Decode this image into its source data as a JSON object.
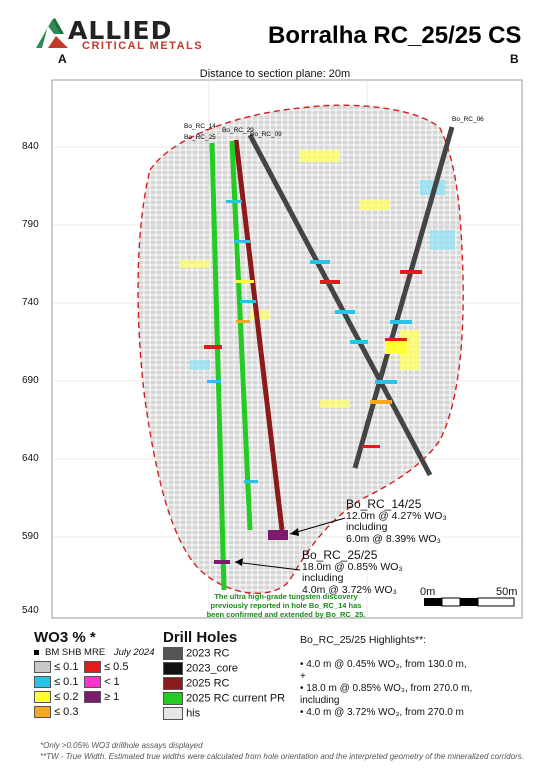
{
  "header": {
    "logo_main": "ALLIED",
    "logo_sub": "CRITICAL METALS",
    "title": "Borralha RC_25/25 CS",
    "corner_a": "A",
    "corner_b": "B",
    "distance_label": "Distance to section plane: 20m"
  },
  "axis": {
    "y_ticks": [
      "840",
      "790",
      "740",
      "690",
      "640",
      "590",
      "540"
    ]
  },
  "holes": [
    "Bo_RC_14",
    "Bo_RC_25",
    "Bo_RC_29",
    "Bo_RC_09",
    "Bo_RC_06"
  ],
  "callouts": {
    "rc14": {
      "name": "Bo_RC_14/25",
      "line1": "12.0m @ 4.27% WO₃",
      "line2": "including",
      "line3": "6.0m @ 8.39% WO₃"
    },
    "rc25": {
      "name": "Bo_RC_25/25",
      "line1": "18.0m @ 0.85% WO₃",
      "line2": "including",
      "line3": "4.0m @ 3.72% WO₃"
    }
  },
  "discovery_note": {
    "line1": "The ultra high-grade tungsten discovery",
    "line2": "previously reported in hole Bo_RC_14 has",
    "line3": "been confirmed and extended by Bo_RC_25."
  },
  "scale_bar": {
    "left": "0m",
    "right": "50m"
  },
  "legend_wo3": {
    "title": "WO3 % *",
    "model_label": "BM SHB MRE",
    "model_date": "July 2024",
    "items": [
      {
        "label": "≤ 0.1",
        "color": "#c8c8c8"
      },
      {
        "label": "≤ 0.5",
        "color": "#e41a1c"
      },
      {
        "label": "≤ 0.1",
        "color": "#27c4e8"
      },
      {
        "label": "< 1",
        "color": "#ff33cc"
      },
      {
        "label": "≤ 0.2",
        "color": "#ffff33"
      },
      {
        "label": "≥ 1",
        "color": "#7b1a6e"
      },
      {
        "label": "≤ 0.3",
        "color": "#f5a623"
      }
    ]
  },
  "legend_holes": {
    "title": "Drill Holes",
    "items": [
      {
        "label": "2023 RC",
        "color": "#555555"
      },
      {
        "label": "2023_core",
        "color": "#111111"
      },
      {
        "label": "2025 RC",
        "color": "#8b1a1a"
      },
      {
        "label": "2025 RC current PR",
        "color": "#22cc22"
      },
      {
        "label": "his",
        "color": "#e6e6e6"
      }
    ]
  },
  "highlights": {
    "title": "Bo_RC_25/25 Highlights**:",
    "lines": [
      "• 4.0 m @ 0.45% WO₃, from 130.0 m,",
      "+",
      "• 18.0 m @ 0.85% WO₃, from 270.0 m,",
      "including",
      "• 4.0 m @ 3.72% WO₃, from 270.0 m"
    ]
  },
  "footnotes": {
    "line1": "*Only >0.05% WO3 drillhole assays displayed",
    "line2": "**TW - True Width. Estimated true widths were calculated from hole orientation and the interpreted geometry of the mineralized corridors."
  },
  "colors": {
    "frame": "#999999",
    "outline": "#d22020",
    "green_hole": "#22cc22",
    "red_hole": "#8b1a1a",
    "grey_hole": "#444444",
    "note_text": "#1a8a1a"
  }
}
